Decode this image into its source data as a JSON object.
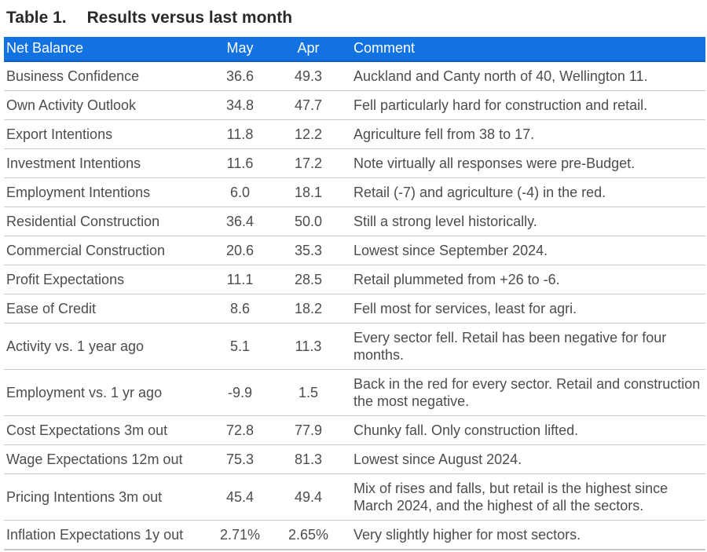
{
  "title": {
    "prefix": "Table 1.",
    "text": "Results versus last month"
  },
  "colors": {
    "header_bg": "#1272e2",
    "header_border": "#0c60c4",
    "header_text": "#ffffff",
    "body_text": "#4d4d4d",
    "title_text": "#2a2a2a",
    "divider": "#c9c9c9"
  },
  "table": {
    "headers": [
      "Net Balance",
      "May",
      "Apr",
      "Comment"
    ],
    "rows": [
      {
        "label": "Business Confidence",
        "may": "36.6",
        "apr": "49.3",
        "comment": "Auckland and Canty north of 40, Wellington 11."
      },
      {
        "label": "Own Activity Outlook",
        "may": "34.8",
        "apr": "47.7",
        "comment": "Fell particularly hard for construction and retail."
      },
      {
        "label": "Export Intentions",
        "may": "11.8",
        "apr": "12.2",
        "comment": "Agriculture fell from 38 to 17."
      },
      {
        "label": "Investment Intentions",
        "may": "11.6",
        "apr": "17.2",
        "comment": "Note virtually all responses were pre-Budget."
      },
      {
        "label": "Employment Intentions",
        "may": "6.0",
        "apr": "18.1",
        "comment": "Retail (-7) and agriculture (-4) in the red."
      },
      {
        "label": "Residential Construction",
        "may": "36.4",
        "apr": "50.0",
        "comment": "Still a strong level historically."
      },
      {
        "label": "Commercial Construction",
        "may": "20.6",
        "apr": "35.3",
        "comment": "Lowest since September 2024."
      },
      {
        "label": "Profit Expectations",
        "may": "11.1",
        "apr": "28.5",
        "comment": "Retail plummeted from +26 to -6."
      },
      {
        "label": "Ease of Credit",
        "may": "8.6",
        "apr": "18.2",
        "comment": "Fell most for services, least for agri."
      },
      {
        "label": "Activity vs. 1 year ago",
        "may": "5.1",
        "apr": "11.3",
        "comment": "Every sector fell. Retail has been negative for four months."
      },
      {
        "label": "Employment vs. 1 yr ago",
        "may": "-9.9",
        "apr": "1.5",
        "comment": "Back in the red for every sector. Retail and construction the most negative."
      },
      {
        "label": "Cost Expectations 3m out",
        "may": "72.8",
        "apr": "77.9",
        "comment": "Chunky fall. Only construction lifted."
      },
      {
        "label": "Wage Expectations 12m out",
        "may": "75.3",
        "apr": "81.3",
        "comment": "Lowest since August 2024."
      },
      {
        "label": "Pricing Intentions 3m out",
        "may": "45.4",
        "apr": "49.4",
        "comment": "Mix of rises and falls, but retail is the highest since March 2024, and the highest of all the sectors."
      },
      {
        "label": "Inflation Expectations 1y out",
        "may": "2.71%",
        "apr": "2.65%",
        "comment": "Very slightly higher for most sectors."
      }
    ]
  }
}
